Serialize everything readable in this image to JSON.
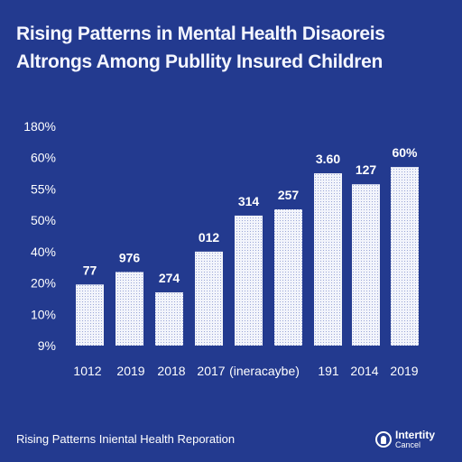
{
  "chart_data": {
    "type": "bar",
    "title_line1": "Rising Patterns in Mental Health Disaoreis",
    "title_line2": "Altrongs Among Publlity Insured Children",
    "y_ticks": [
      "9%",
      "10%",
      "20%",
      "40%",
      "50%",
      "55%",
      "60%",
      "180%"
    ],
    "categories": [
      "1012",
      "2019",
      "2018",
      "2017",
      "(ineracaybe)",
      "",
      "191",
      "2014",
      "2019"
    ],
    "data_labels": [
      "77",
      "976",
      "274",
      "012",
      "314",
      "257",
      "3.60",
      "127",
      "60%"
    ],
    "values": [
      1.95,
      2.35,
      1.7,
      3.0,
      4.15,
      4.35,
      5.5,
      5.15,
      5.7
    ],
    "ylim": [
      0,
      7
    ],
    "grid": false,
    "bar_color": "#f2f4fb"
  },
  "footer": {
    "caption": "Rising Patterns Iniental Health Reporation",
    "logo_line1": "Intertity",
    "logo_line2": "Cancel"
  }
}
